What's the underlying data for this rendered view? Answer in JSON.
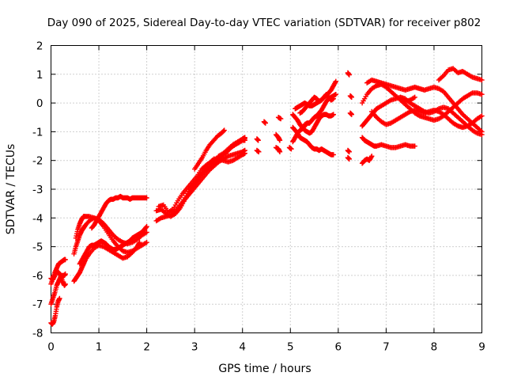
{
  "chart_data": {
    "type": "scatter",
    "title": "Day 090 of 2025, Sidereal Day-to-day VTEC variation (SDTVAR) for receiver p802",
    "xlabel": "GPS time / hours",
    "ylabel": "SDTVAR / TECUs",
    "xlim": [
      0,
      9
    ],
    "ylim": [
      -8,
      2
    ],
    "x_ticks": [
      "0",
      "1",
      "2",
      "3",
      "4",
      "5",
      "6",
      "7",
      "8",
      "9"
    ],
    "y_ticks": [
      "-8",
      "-7",
      "-6",
      "-5",
      "-4",
      "-3",
      "-2",
      "-1",
      "0",
      "1",
      "2"
    ],
    "grid": true,
    "marker": "+",
    "color": "#ff0000",
    "segments": [
      {
        "x": [
          0.0,
          0.03,
          0.06,
          0.09,
          0.12,
          0.15,
          0.18
        ],
        "y": [
          -7.65,
          -7.7,
          -7.6,
          -7.4,
          -7.1,
          -6.9,
          -6.8
        ]
      },
      {
        "x": [
          0.0,
          0.04,
          0.08,
          0.12,
          0.16,
          0.2,
          0.24,
          0.28,
          0.3
        ],
        "y": [
          -7.0,
          -6.8,
          -6.6,
          -6.35,
          -6.2,
          -6.05,
          -6.0,
          -6.0,
          -5.95
        ]
      },
      {
        "x": [
          0.0,
          0.04,
          0.08,
          0.12,
          0.16,
          0.2,
          0.24,
          0.28,
          0.3
        ],
        "y": [
          -6.1,
          -6.15,
          -6.0,
          -5.85,
          -5.9,
          -6.0,
          -6.2,
          -6.35,
          -6.3
        ]
      },
      {
        "x": [
          0.0,
          0.04,
          0.08,
          0.12,
          0.16,
          0.2,
          0.24,
          0.28,
          0.3
        ],
        "y": [
          -6.3,
          -6.1,
          -5.9,
          -5.75,
          -5.6,
          -5.55,
          -5.5,
          -5.45,
          -5.45
        ]
      },
      {
        "x": [
          0.48,
          0.52,
          0.56,
          0.6,
          0.64,
          0.68,
          0.72,
          0.8,
          0.9,
          1.0,
          1.1,
          1.2,
          1.3,
          1.4,
          1.5,
          1.6,
          1.7,
          1.8,
          1.85
        ],
        "y": [
          -6.2,
          -6.1,
          -6.0,
          -5.9,
          -5.75,
          -5.6,
          -5.45,
          -5.25,
          -5.05,
          -4.95,
          -5.0,
          -5.1,
          -5.2,
          -5.3,
          -5.4,
          -5.35,
          -5.2,
          -5.0,
          -4.85
        ]
      },
      {
        "x": [
          0.48,
          0.52,
          0.56,
          0.6,
          0.64,
          0.68,
          0.72,
          0.8,
          0.9,
          1.0,
          1.1,
          1.2,
          1.3,
          1.4,
          1.5,
          1.6,
          1.7,
          1.8,
          1.9,
          2.0
        ],
        "y": [
          -5.25,
          -5.0,
          -4.8,
          -4.6,
          -4.45,
          -4.35,
          -4.25,
          -4.1,
          -4.0,
          -4.05,
          -4.2,
          -4.4,
          -4.6,
          -4.75,
          -4.85,
          -4.9,
          -4.85,
          -4.75,
          -4.6,
          -4.5
        ]
      },
      {
        "x": [
          0.52,
          0.56,
          0.6,
          0.64,
          0.68,
          0.72,
          0.8,
          0.9,
          1.0,
          1.1,
          1.2,
          1.3,
          1.4,
          1.5,
          1.6,
          1.7,
          1.8,
          1.9,
          2.0
        ],
        "y": [
          -4.7,
          -4.4,
          -4.2,
          -4.05,
          -3.95,
          -3.95,
          -3.95,
          -4.0,
          -4.1,
          -4.3,
          -4.55,
          -4.8,
          -5.0,
          -5.15,
          -5.2,
          -5.15,
          -5.05,
          -4.95,
          -4.85
        ]
      },
      {
        "x": [
          0.6,
          0.65,
          0.7,
          0.75,
          0.8,
          0.85,
          0.9,
          0.95,
          1.0,
          1.05,
          1.1,
          1.15,
          1.2,
          1.25,
          1.3,
          1.35,
          1.4,
          1.45,
          1.5,
          1.55,
          1.6,
          1.65,
          1.7,
          1.75,
          1.8,
          1.85,
          1.9,
          1.95,
          2.0
        ],
        "y": [
          -5.6,
          -5.45,
          -5.3,
          -5.15,
          -5.0,
          -4.95,
          -4.95,
          -4.9,
          -4.85,
          -4.8,
          -4.85,
          -4.9,
          -5.0,
          -5.05,
          -5.1,
          -5.1,
          -5.05,
          -5.0,
          -4.95,
          -4.9,
          -4.85,
          -4.8,
          -4.7,
          -4.65,
          -4.6,
          -4.55,
          -4.5,
          -4.4,
          -4.3
        ]
      },
      {
        "x": [
          0.85,
          0.9,
          0.95,
          1.0,
          1.05,
          1.1,
          1.15,
          1.2,
          1.25,
          1.3,
          1.35,
          1.4,
          1.45,
          1.5,
          1.55,
          1.6,
          1.65,
          1.7,
          1.75,
          1.8,
          1.85,
          1.9,
          1.95,
          2.0
        ],
        "y": [
          -4.35,
          -4.25,
          -4.1,
          -3.95,
          -3.8,
          -3.65,
          -3.5,
          -3.4,
          -3.35,
          -3.35,
          -3.3,
          -3.3,
          -3.25,
          -3.3,
          -3.3,
          -3.3,
          -3.35,
          -3.3,
          -3.3,
          -3.3,
          -3.3,
          -3.3,
          -3.3,
          -3.3
        ]
      },
      {
        "x": [
          2.2,
          2.3,
          2.4,
          2.5,
          2.6,
          2.7,
          2.8,
          2.9,
          3.0,
          3.1,
          3.2,
          3.3,
          3.4,
          3.5,
          3.6,
          3.7,
          3.8,
          3.9,
          4.0,
          4.05
        ],
        "y": [
          -4.1,
          -4.0,
          -3.95,
          -3.9,
          -3.75,
          -3.55,
          -3.35,
          -3.15,
          -2.95,
          -2.75,
          -2.55,
          -2.35,
          -2.2,
          -2.05,
          -1.95,
          -1.85,
          -1.8,
          -1.75,
          -1.7,
          -1.65
        ]
      },
      {
        "x": [
          2.2,
          2.3,
          2.4,
          2.5,
          2.6,
          2.7,
          2.8,
          2.9,
          3.0,
          3.1,
          3.2,
          3.3,
          3.4,
          3.5,
          3.6,
          3.7,
          3.8,
          3.9,
          4.0,
          4.05
        ],
        "y": [
          -3.75,
          -3.7,
          -3.85,
          -3.95,
          -3.85,
          -3.6,
          -3.3,
          -3.0,
          -2.75,
          -2.55,
          -2.4,
          -2.25,
          -2.1,
          -1.95,
          -1.8,
          -1.65,
          -1.5,
          -1.4,
          -1.3,
          -1.3
        ]
      },
      {
        "x": [
          2.25,
          2.35,
          2.45,
          2.55,
          2.65,
          2.75,
          2.85,
          2.95,
          3.05,
          3.15,
          3.25,
          3.35,
          3.45,
          3.55,
          3.65,
          3.75,
          3.85,
          3.95,
          4.05
        ],
        "y": [
          -3.6,
          -3.55,
          -3.8,
          -3.7,
          -3.4,
          -3.15,
          -2.95,
          -2.75,
          -2.55,
          -2.3,
          -2.15,
          -2.05,
          -1.95,
          -1.85,
          -1.75,
          -1.55,
          -1.45,
          -1.35,
          -1.25
        ]
      },
      {
        "x": [
          2.6,
          2.7,
          2.8,
          2.9,
          3.0,
          3.1,
          3.2,
          3.3,
          3.4,
          3.5,
          3.6,
          3.7,
          3.8,
          3.9,
          4.0,
          4.05
        ],
        "y": [
          -3.85,
          -3.65,
          -3.35,
          -3.1,
          -2.85,
          -2.6,
          -2.35,
          -2.1,
          -1.95,
          -1.95,
          -2.0,
          -2.05,
          -2.0,
          -1.9,
          -1.8,
          -1.75
        ]
      },
      {
        "x": [
          3.0,
          3.08,
          3.16,
          3.24,
          3.32,
          3.4,
          3.48,
          3.56,
          3.62
        ],
        "y": [
          -2.3,
          -2.1,
          -1.9,
          -1.65,
          -1.45,
          -1.3,
          -1.15,
          -1.05,
          -0.95
        ]
      },
      {
        "x": [
          3.5,
          3.6,
          3.7,
          3.8,
          3.9,
          4.0,
          4.05
        ],
        "y": [
          -1.85,
          -1.75,
          -1.6,
          -1.45,
          -1.35,
          -1.25,
          -1.2
        ]
      },
      {
        "x": [
          4.3,
          4.33
        ],
        "y": [
          -1.25,
          -1.3
        ]
      },
      {
        "x": [
          4.3,
          4.34
        ],
        "y": [
          -1.65,
          -1.7
        ]
      },
      {
        "x": [
          4.45,
          4.48
        ],
        "y": [
          -0.65,
          -0.7
        ]
      },
      {
        "x": [
          4.7,
          4.75,
          4.78
        ],
        "y": [
          -1.1,
          -1.2,
          -1.3
        ]
      },
      {
        "x": [
          4.7,
          4.75,
          4.78
        ],
        "y": [
          -1.55,
          -1.6,
          -1.7
        ]
      },
      {
        "x": [
          4.75,
          4.8
        ],
        "y": [
          -0.5,
          -0.55
        ]
      },
      {
        "x": [
          4.98,
          5.02
        ],
        "y": [
          -1.55,
          -1.6
        ]
      },
      {
        "x": [
          5.05,
          5.1,
          5.15,
          5.2,
          5.25,
          5.3
        ],
        "y": [
          -1.35,
          -1.2,
          -1.05,
          -0.95,
          -0.9,
          -0.8
        ]
      },
      {
        "x": [
          5.05,
          5.1,
          5.15,
          5.2,
          5.25,
          5.3,
          5.35,
          5.4,
          5.45,
          5.5,
          5.55,
          5.6,
          5.65,
          5.7,
          5.75,
          5.8,
          5.85,
          5.9
        ],
        "y": [
          -0.85,
          -0.95,
          -1.05,
          -1.2,
          -1.25,
          -1.3,
          -1.35,
          -1.45,
          -1.55,
          -1.6,
          -1.6,
          -1.65,
          -1.6,
          -1.65,
          -1.7,
          -1.75,
          -1.8,
          -1.8
        ]
      },
      {
        "x": [
          5.05,
          5.1,
          5.15,
          5.2,
          5.25,
          5.3,
          5.35,
          5.4,
          5.45,
          5.5,
          5.55,
          5.6,
          5.65,
          5.7,
          5.75,
          5.8,
          5.85,
          5.9
        ],
        "y": [
          -0.4,
          -0.5,
          -0.6,
          -0.75,
          -0.85,
          -0.95,
          -1.0,
          -1.05,
          -1.0,
          -0.85,
          -0.7,
          -0.55,
          -0.45,
          -0.4,
          -0.4,
          -0.45,
          -0.45,
          -0.4
        ]
      },
      {
        "x": [
          5.1,
          5.15,
          5.2,
          5.25,
          5.3,
          5.35,
          5.4,
          5.45,
          5.5,
          5.55,
          5.6,
          5.65,
          5.7,
          5.75,
          5.8,
          5.85,
          5.9,
          5.95
        ],
        "y": [
          -0.2,
          -0.15,
          -0.1,
          -0.05,
          0.0,
          -0.05,
          -0.1,
          -0.1,
          -0.05,
          0.0,
          0.05,
          0.1,
          0.2,
          0.25,
          0.35,
          0.45,
          0.6,
          0.75
        ]
      },
      {
        "x": [
          5.2,
          5.25,
          5.3,
          5.35,
          5.4,
          5.45,
          5.5,
          5.55,
          5.6,
          5.65,
          5.7,
          5.75,
          5.8,
          5.85,
          5.9
        ],
        "y": [
          -0.35,
          -0.3,
          -0.2,
          -0.1,
          0.0,
          0.1,
          0.2,
          0.15,
          0.05,
          0.1,
          0.2,
          0.3,
          0.2,
          0.1,
          0.15
        ]
      },
      {
        "x": [
          5.3,
          5.35,
          5.4,
          5.45,
          5.5,
          5.55,
          5.6,
          5.65,
          5.7,
          5.75,
          5.8,
          5.85,
          5.9,
          5.95
        ],
        "y": [
          -0.75,
          -0.7,
          -0.7,
          -0.6,
          -0.5,
          -0.45,
          -0.35,
          -0.25,
          -0.1,
          0.05,
          0.15,
          0.2,
          0.25,
          0.3
        ]
      },
      {
        "x": [
          6.2,
          6.23
        ],
        "y": [
          1.05,
          0.98
        ]
      },
      {
        "x": [
          6.2,
          6.23
        ],
        "y": [
          -1.65,
          -1.7
        ]
      },
      {
        "x": [
          6.2,
          6.23
        ],
        "y": [
          -1.9,
          -1.95
        ]
      },
      {
        "x": [
          6.25,
          6.28
        ],
        "y": [
          0.25,
          0.2
        ]
      },
      {
        "x": [
          6.25,
          6.28
        ],
        "y": [
          -0.35,
          -0.4
        ]
      },
      {
        "x": [
          6.5,
          6.55,
          6.6,
          6.65,
          6.7,
          6.75,
          6.8,
          6.9,
          7.0,
          7.1,
          7.2,
          7.3,
          7.4,
          7.5,
          7.6
        ],
        "y": [
          -1.2,
          -1.3,
          -1.35,
          -1.4,
          -1.45,
          -1.5,
          -1.5,
          -1.45,
          -1.5,
          -1.55,
          -1.55,
          -1.5,
          -1.45,
          -1.5,
          -1.5
        ]
      },
      {
        "x": [
          6.5,
          6.55,
          6.6,
          6.65,
          6.7
        ],
        "y": [
          -2.1,
          -2.0,
          -1.95,
          -2.0,
          -1.85
        ]
      },
      {
        "x": [
          6.5,
          6.55,
          6.6,
          6.65,
          6.7,
          6.75,
          6.8,
          6.9,
          7.0,
          7.1,
          7.2,
          7.3,
          7.4,
          7.5,
          7.6,
          7.7,
          7.8,
          7.9,
          8.0,
          8.1,
          8.2,
          8.3,
          8.4,
          8.5,
          8.6,
          8.7,
          8.8,
          8.9,
          9.0
        ],
        "y": [
          -0.8,
          -0.7,
          -0.6,
          -0.5,
          -0.4,
          -0.3,
          -0.2,
          -0.1,
          0.0,
          0.1,
          0.15,
          0.2,
          0.15,
          0.0,
          -0.1,
          -0.2,
          -0.3,
          -0.35,
          -0.3,
          -0.2,
          -0.15,
          -0.2,
          -0.35,
          -0.5,
          -0.65,
          -0.8,
          -0.95,
          -1.05,
          -1.1
        ]
      },
      {
        "x": [
          6.5,
          6.6,
          6.7,
          6.8,
          6.9,
          7.0,
          7.1,
          7.2,
          7.3,
          7.4,
          7.5,
          7.6,
          7.7,
          7.8,
          7.9,
          8.0,
          8.1,
          8.2,
          8.3,
          8.4,
          8.5,
          8.6,
          8.7,
          8.8,
          8.9,
          9.0
        ],
        "y": [
          0.0,
          0.3,
          0.5,
          0.6,
          0.65,
          0.55,
          0.4,
          0.25,
          0.1,
          -0.05,
          -0.2,
          -0.35,
          -0.45,
          -0.5,
          -0.55,
          -0.6,
          -0.55,
          -0.45,
          -0.3,
          -0.15,
          0.0,
          0.15,
          0.25,
          0.35,
          0.35,
          0.3
        ]
      },
      {
        "x": [
          6.6,
          6.7,
          6.8,
          6.9,
          7.0,
          7.1,
          7.2,
          7.3,
          7.4,
          7.5,
          7.6,
          7.7,
          7.8,
          7.9,
          8.0,
          8.1,
          8.2,
          8.3,
          8.4,
          8.5,
          8.6,
          8.7,
          8.8,
          8.9,
          9.0
        ],
        "y": [
          0.7,
          0.8,
          0.75,
          0.7,
          0.65,
          0.6,
          0.55,
          0.5,
          0.45,
          0.5,
          0.55,
          0.5,
          0.45,
          0.5,
          0.55,
          0.5,
          0.4,
          0.2,
          0.0,
          -0.2,
          -0.4,
          -0.55,
          -0.7,
          -0.85,
          -1.0
        ]
      },
      {
        "x": [
          6.7,
          6.8,
          6.9,
          7.0,
          7.1,
          7.2,
          7.3,
          7.4,
          7.5,
          7.6,
          7.7,
          7.8,
          7.9,
          8.0,
          8.1,
          8.2,
          8.3,
          8.4,
          8.5,
          8.6,
          8.7,
          8.8,
          8.9,
          9.0
        ],
        "y": [
          -0.3,
          -0.5,
          -0.65,
          -0.75,
          -0.7,
          -0.6,
          -0.5,
          -0.4,
          -0.3,
          -0.25,
          -0.3,
          -0.35,
          -0.3,
          -0.25,
          -0.3,
          -0.4,
          -0.55,
          -0.7,
          -0.8,
          -0.85,
          -0.8,
          -0.7,
          -0.55,
          -0.45
        ]
      },
      {
        "x": [
          7.3,
          7.4,
          7.5,
          7.6
        ],
        "y": [
          0.2,
          0.05,
          0.1,
          0.2
        ]
      },
      {
        "x": [
          8.1,
          8.2,
          8.3,
          8.4,
          8.5,
          8.6,
          8.7,
          8.8,
          8.9,
          9.0
        ],
        "y": [
          0.8,
          0.95,
          1.15,
          1.2,
          1.05,
          1.1,
          1.0,
          0.9,
          0.85,
          0.8
        ]
      }
    ]
  }
}
